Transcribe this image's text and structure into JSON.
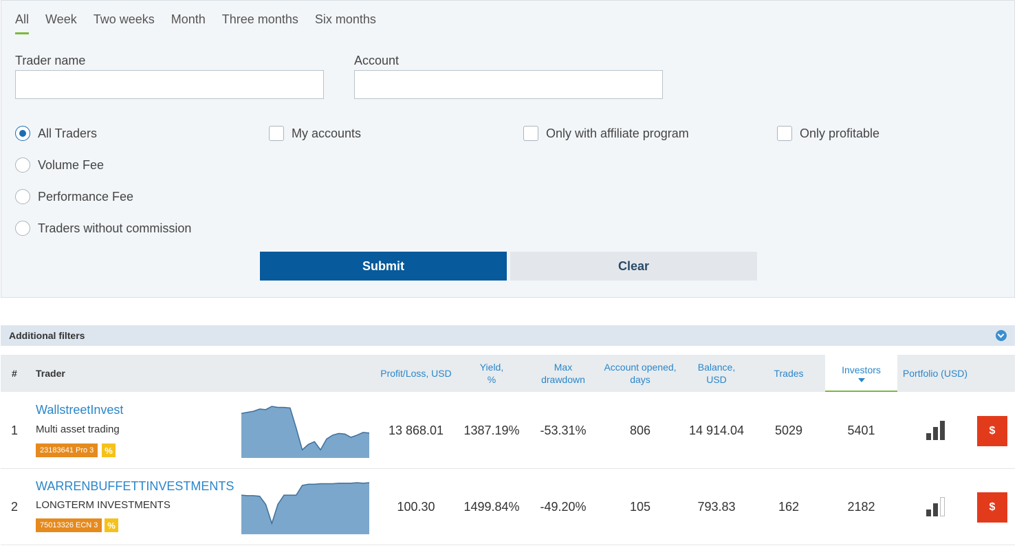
{
  "period_tabs": [
    {
      "label": "All",
      "active": true
    },
    {
      "label": "Week",
      "active": false
    },
    {
      "label": "Two weeks",
      "active": false
    },
    {
      "label": "Month",
      "active": false
    },
    {
      "label": "Three months",
      "active": false
    },
    {
      "label": "Six months",
      "active": false
    }
  ],
  "filters": {
    "trader_name_label": "Trader name",
    "trader_name_value": "",
    "account_label": "Account",
    "account_value": "",
    "radios": [
      {
        "label": "All Traders",
        "checked": true
      },
      {
        "label": "Volume Fee",
        "checked": false
      },
      {
        "label": "Performance Fee",
        "checked": false
      },
      {
        "label": "Traders without commission",
        "checked": false
      }
    ],
    "checkboxes": [
      {
        "label": "My accounts",
        "checked": false
      },
      {
        "label": "Only with affiliate program",
        "checked": false
      },
      {
        "label": "Only profitable",
        "checked": false
      }
    ],
    "submit_label": "Submit",
    "clear_label": "Clear"
  },
  "additional_filters_label": "Additional filters",
  "table": {
    "headers": {
      "rank": "#",
      "trader": "Trader",
      "profit": "Profit/Loss, USD",
      "yield_line1": "Yield,",
      "yield_line2": "%",
      "drawdown_line1": "Max",
      "drawdown_line2": "drawdown",
      "opened_line1": "Account opened,",
      "opened_line2": "days",
      "balance_line1": "Balance,",
      "balance_line2": "USD",
      "trades": "Trades",
      "investors": "Investors",
      "portfolio": "Portfolio (USD)"
    },
    "rows": [
      {
        "rank": "1",
        "name": "WallstreetInvest",
        "subtitle": "Multi asset trading",
        "account_badge": "23183641 Pro 3",
        "pct_badge": "%",
        "profit": "13 868.01",
        "yield": "1387.19%",
        "drawdown": "-53.31%",
        "opened": "806",
        "balance": "14 914.04",
        "trades": "5029",
        "investors": "5401",
        "portfolio_level": 3,
        "invest_label": "$",
        "spark": [
          0.82,
          0.84,
          0.86,
          0.9,
          0.89,
          0.95,
          0.93,
          0.93,
          0.92,
          0.55,
          0.15,
          0.25,
          0.3,
          0.15,
          0.35,
          0.42,
          0.45,
          0.44,
          0.38,
          0.42,
          0.47,
          0.46
        ]
      },
      {
        "rank": "2",
        "name": "WARRENBUFFETTINVESTMENTS",
        "subtitle": "LONGTERM INVESTMENTS",
        "account_badge": "75013326 ECN 3",
        "pct_badge": "%",
        "profit": "100.30",
        "yield": "1499.84%",
        "drawdown": "-49.20%",
        "opened": "105",
        "balance": "793.83",
        "trades": "162",
        "investors": "2182",
        "portfolio_level": 2,
        "invest_label": "$",
        "spark": [
          0.72,
          0.71,
          0.71,
          0.7,
          0.55,
          0.2,
          0.55,
          0.72,
          0.72,
          0.72,
          0.9,
          0.92,
          0.92,
          0.93,
          0.93,
          0.93,
          0.94,
          0.94,
          0.94,
          0.95,
          0.94,
          0.95
        ]
      }
    ]
  },
  "colors": {
    "accent_blue": "#075a9b",
    "link_blue": "#2a86c9",
    "active_green": "#7bb93a",
    "invest_red": "#e23b1c",
    "spark_fill": "#7ba7cc",
    "spark_line": "#3f6f99"
  }
}
